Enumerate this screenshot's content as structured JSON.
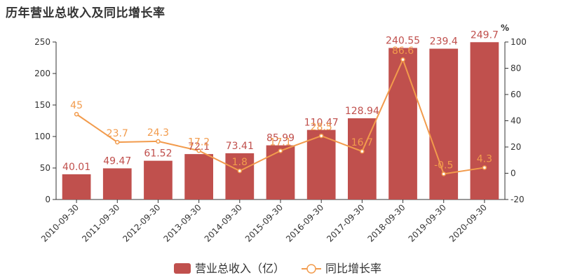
{
  "chart_data": {
    "type": "bar",
    "title": "历年营业总收入及同比增长率",
    "categories": [
      "2010-09-30",
      "2011-09-30",
      "2012-09-30",
      "2013-09-30",
      "2014-09-30",
      "2015-09-30",
      "2016-09-30",
      "2017-09-30",
      "2018-09-30",
      "2019-09-30",
      "2020-09-30"
    ],
    "series": [
      {
        "name": "营业总收入（亿）",
        "type": "bar",
        "axis": "left",
        "color": "#c0504d",
        "values": [
          40.01,
          49.47,
          61.52,
          72.1,
          73.41,
          85.99,
          110.47,
          128.94,
          240.55,
          239.4,
          249.7
        ],
        "labels": [
          "40.01",
          "49.47",
          "61.52",
          "72.1",
          "73.41",
          "85.99",
          "110.47",
          "128.94",
          "240.55",
          "239.4",
          "249.7"
        ]
      },
      {
        "name": "同比增长率",
        "type": "line",
        "axis": "right",
        "color": "#f29b4c",
        "values": [
          45,
          23.7,
          24.3,
          17.2,
          1.8,
          17.1,
          28.5,
          16.7,
          86.6,
          -0.5,
          4.3
        ],
        "labels": [
          "45",
          "23.7",
          "24.3",
          "17.2",
          "1.8",
          "17.1",
          "28.5",
          "16.7",
          "86.6",
          "-0.5",
          "4.3"
        ]
      }
    ],
    "y_left": {
      "lim": [
        0,
        250
      ],
      "ticks": [
        "0",
        "50",
        "100",
        "150",
        "200",
        "250"
      ]
    },
    "y_right": {
      "label": "%",
      "lim": [
        -20,
        100
      ],
      "ticks": [
        "-20",
        "0",
        "20",
        "40",
        "60",
        "80",
        "100"
      ]
    },
    "grid": false,
    "legend": "bottom-center"
  }
}
